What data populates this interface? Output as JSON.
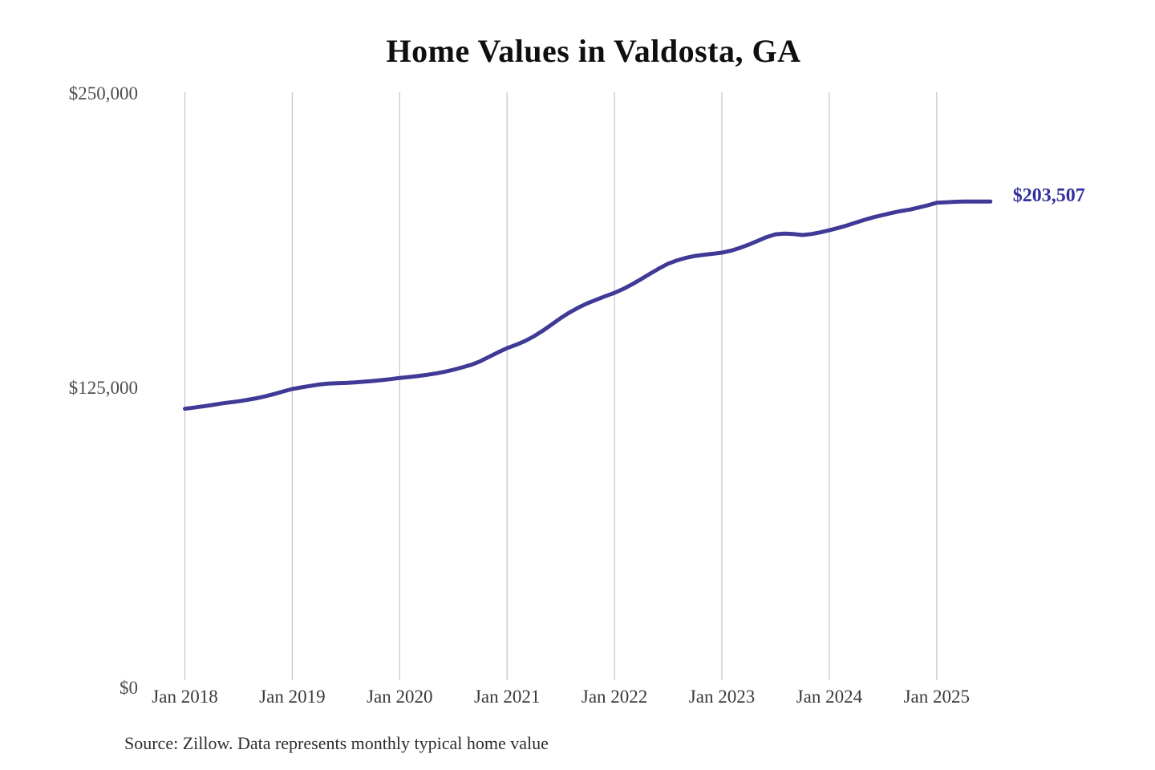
{
  "chart_data": {
    "type": "line",
    "title": "Home Values in Valdosta, GA",
    "source": "Source: Zillow. Data represents monthly typical home value",
    "x_start": "2018-01",
    "x_frequency": "monthly",
    "x_ticks": [
      "Jan 2018",
      "Jan 2019",
      "Jan 2020",
      "Jan 2021",
      "Jan 2022",
      "Jan 2023",
      "Jan 2024",
      "Jan 2025"
    ],
    "y_ticks": [
      {
        "label": "$250,000",
        "value": 250000
      },
      {
        "label": "$125,000",
        "value": 125000
      },
      {
        "label": "$0",
        "value": 0
      }
    ],
    "ylim": [
      0,
      250000
    ],
    "grid": "vertical-only",
    "legend": "none",
    "line_color": "#3e3a96",
    "gridline_color": "#c9c9c9",
    "end_label": {
      "text": "$203,507",
      "value": 203507,
      "color": "#322f9d"
    },
    "values": [
      115400,
      115900,
      116400,
      117000,
      117600,
      118100,
      118600,
      119200,
      119900,
      120700,
      121700,
      122800,
      123800,
      124500,
      125100,
      125700,
      126100,
      126300,
      126400,
      126600,
      126900,
      127200,
      127600,
      128000,
      128500,
      128900,
      129300,
      129800,
      130400,
      131100,
      132000,
      133000,
      134100,
      135600,
      137500,
      139400,
      141200,
      142600,
      144200,
      146200,
      148600,
      151300,
      154000,
      156400,
      158500,
      160300,
      161800,
      163300,
      164700,
      166400,
      168400,
      170600,
      172900,
      175100,
      177100,
      178500,
      179600,
      180400,
      180900,
      181300,
      181800,
      182600,
      183800,
      185200,
      186800,
      188400,
      189600,
      189900,
      189700,
      189300,
      189700,
      190400,
      191300,
      192300,
      193400,
      194600,
      195800,
      196900,
      197800,
      198700,
      199500,
      200100,
      201000,
      201900,
      203000,
      203200,
      203400,
      203500,
      203550,
      203530,
      203507
    ]
  }
}
